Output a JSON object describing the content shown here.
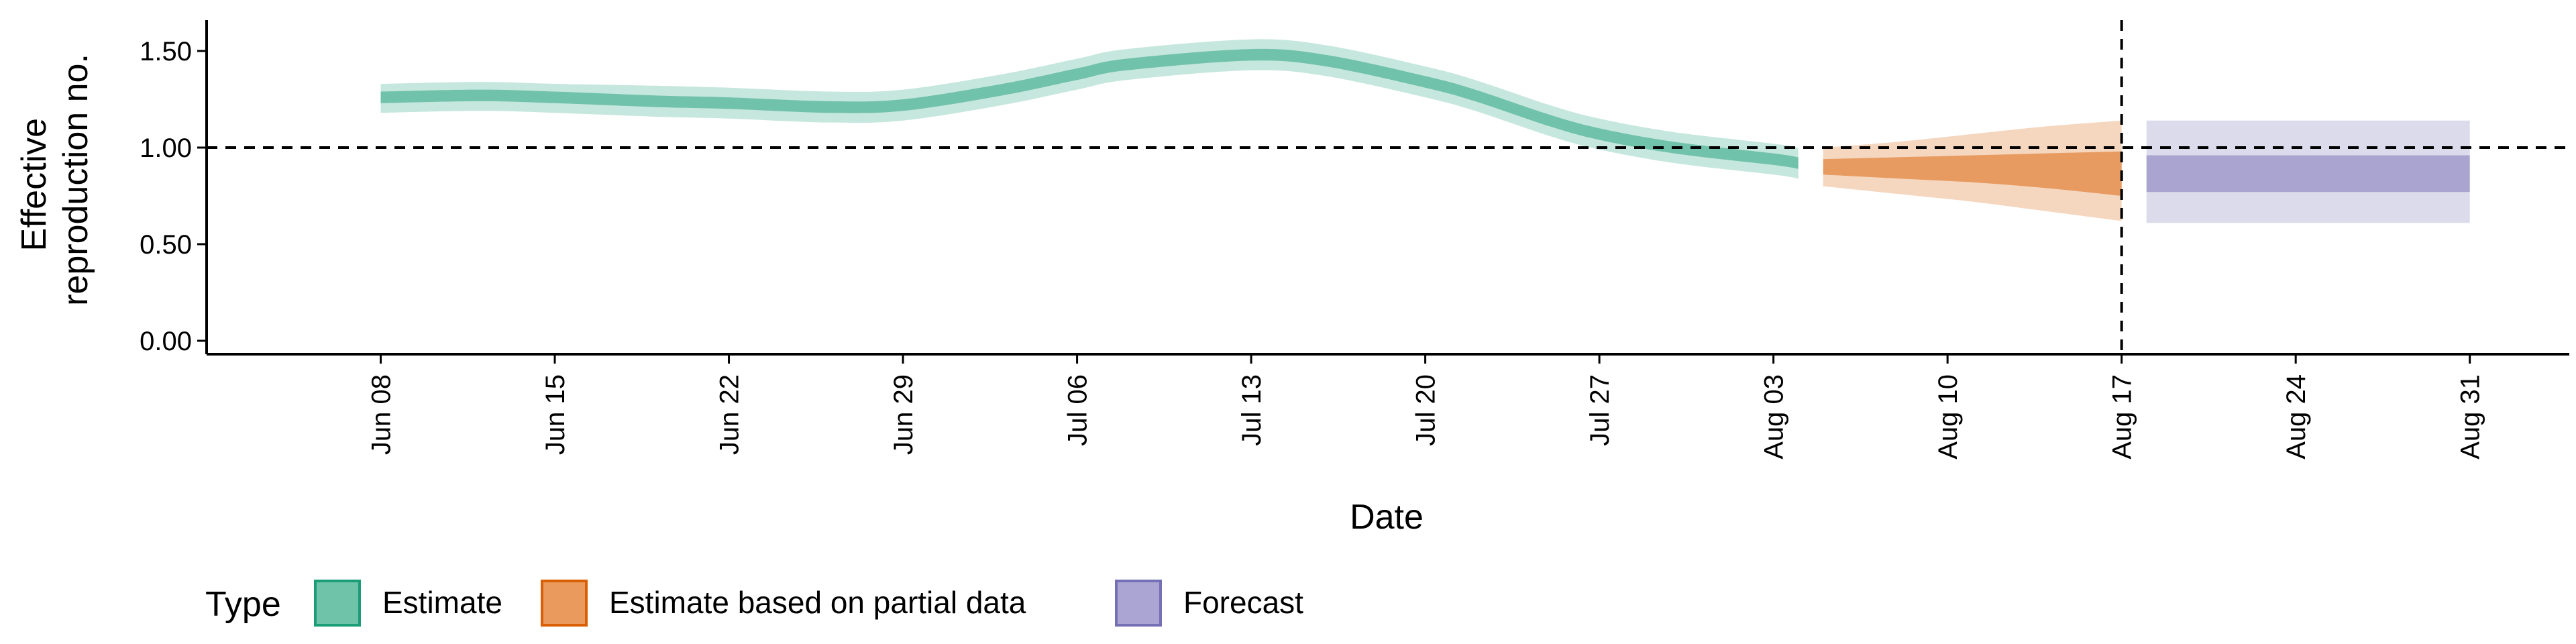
{
  "chart_data": {
    "type": "area",
    "title": "",
    "xlabel": "Date",
    "ylabel": [
      "Effective",
      "reproduction no."
    ],
    "ylim": [
      0,
      1.6
    ],
    "yticks": [
      0,
      0.5,
      1,
      1.5
    ],
    "ytick_labels": [
      "0.00",
      "0.50",
      "1.00",
      "1.50"
    ],
    "xlim": [
      "2020-06-01",
      "2020-09-04"
    ],
    "xticks": [
      "2020-06-08",
      "2020-06-15",
      "2020-06-22",
      "2020-06-29",
      "2020-07-06",
      "2020-07-13",
      "2020-07-20",
      "2020-07-27",
      "2020-08-03",
      "2020-08-10",
      "2020-08-17",
      "2020-08-24",
      "2020-08-31"
    ],
    "xtick_labels": [
      "Jun 08",
      "Jun 15",
      "Jun 22",
      "Jun 29",
      "Jul 06",
      "Jul 13",
      "Jul 20",
      "Jul 27",
      "Aug 03",
      "Aug 10",
      "Aug 17",
      "Aug 24",
      "Aug 31"
    ],
    "hline": 1.0,
    "vline": "2020-08-17",
    "grid": false,
    "legend": {
      "title": "Type",
      "position": "bottom-left",
      "entries": [
        {
          "label": "Estimate",
          "fill": "#6fc3a8",
          "stroke": "#1b9e77"
        },
        {
          "label": "Estimate based on partial data",
          "fill": "#ea9a5c",
          "stroke": "#d95f02"
        },
        {
          "label": "Forecast",
          "fill": "#aaa5d3",
          "stroke": "#7570b3"
        }
      ]
    },
    "series": [
      {
        "name": "Estimate",
        "color": "#1b9e77",
        "x": [
          "2020-06-08",
          "2020-06-12",
          "2020-06-15",
          "2020-06-19",
          "2020-06-22",
          "2020-06-26",
          "2020-06-29",
          "2020-07-03",
          "2020-07-06",
          "2020-07-08",
          "2020-07-13",
          "2020-07-16",
          "2020-07-20",
          "2020-07-22",
          "2020-07-25",
          "2020-07-27",
          "2020-07-30",
          "2020-08-03",
          "2020-08-04"
        ],
        "median": [
          1.26,
          1.27,
          1.26,
          1.24,
          1.23,
          1.21,
          1.22,
          1.3,
          1.38,
          1.43,
          1.48,
          1.45,
          1.34,
          1.27,
          1.14,
          1.07,
          1.0,
          0.94,
          0.92
        ],
        "inner": [
          [
            1.23,
            1.29
          ],
          [
            1.24,
            1.3
          ],
          [
            1.23,
            1.29
          ],
          [
            1.21,
            1.27
          ],
          [
            1.2,
            1.26
          ],
          [
            1.18,
            1.24
          ],
          [
            1.19,
            1.25
          ],
          [
            1.27,
            1.33
          ],
          [
            1.35,
            1.41
          ],
          [
            1.4,
            1.46
          ],
          [
            1.45,
            1.51
          ],
          [
            1.42,
            1.48
          ],
          [
            1.31,
            1.37
          ],
          [
            1.24,
            1.3
          ],
          [
            1.11,
            1.17
          ],
          [
            1.04,
            1.1
          ],
          [
            0.97,
            1.03
          ],
          [
            0.91,
            0.97
          ],
          [
            0.89,
            0.95
          ]
        ],
        "outer": [
          [
            1.18,
            1.33
          ],
          [
            1.19,
            1.34
          ],
          [
            1.18,
            1.33
          ],
          [
            1.16,
            1.32
          ],
          [
            1.15,
            1.31
          ],
          [
            1.13,
            1.29
          ],
          [
            1.14,
            1.3
          ],
          [
            1.22,
            1.38
          ],
          [
            1.3,
            1.46
          ],
          [
            1.35,
            1.51
          ],
          [
            1.4,
            1.56
          ],
          [
            1.37,
            1.53
          ],
          [
            1.26,
            1.42
          ],
          [
            1.19,
            1.35
          ],
          [
            1.06,
            1.22
          ],
          [
            0.99,
            1.15
          ],
          [
            0.92,
            1.08
          ],
          [
            0.86,
            1.02
          ],
          [
            0.84,
            1.0
          ]
        ]
      },
      {
        "name": "Estimate based on partial data",
        "color": "#d95f02",
        "x": [
          "2020-08-05",
          "2020-08-08",
          "2020-08-11",
          "2020-08-14",
          "2020-08-17"
        ],
        "median": [
          0.9,
          0.89,
          0.88,
          0.87,
          0.85
        ],
        "inner": [
          [
            0.86,
            0.94
          ],
          [
            0.84,
            0.95
          ],
          [
            0.82,
            0.96
          ],
          [
            0.79,
            0.97
          ],
          [
            0.75,
            0.98
          ]
        ],
        "outer": [
          [
            0.8,
            1.0
          ],
          [
            0.76,
            1.03
          ],
          [
            0.72,
            1.07
          ],
          [
            0.67,
            1.11
          ],
          [
            0.62,
            1.14
          ]
        ]
      },
      {
        "name": "Forecast",
        "color": "#7570b3",
        "x": [
          "2020-08-18",
          "2020-08-31"
        ],
        "median": [
          0.87,
          0.87
        ],
        "inner": [
          [
            0.77,
            0.96
          ],
          [
            0.77,
            0.96
          ]
        ],
        "outer": [
          [
            0.61,
            1.14
          ],
          [
            0.61,
            1.14
          ]
        ]
      }
    ]
  }
}
